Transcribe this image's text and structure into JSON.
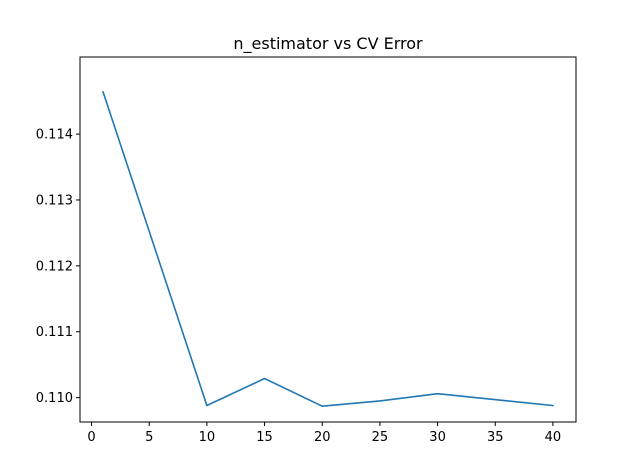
{
  "chart_data": {
    "type": "line",
    "title": "n_estimator vs CV Error",
    "xlabel": "",
    "ylabel": "",
    "xlim": [
      -1,
      42
    ],
    "ylim": [
      0.10963,
      0.11517
    ],
    "x_ticks": [
      0,
      5,
      10,
      15,
      20,
      25,
      30,
      35,
      40
    ],
    "y_ticks": [
      0.11,
      0.111,
      0.112,
      0.113,
      0.114
    ],
    "y_tick_labels": [
      "0.110",
      "0.111",
      "0.112",
      "0.113",
      "0.114"
    ],
    "grid": false,
    "series": [
      {
        "color": "#1f77b4",
        "x": [
          1,
          10,
          15,
          20,
          25,
          30,
          40
        ],
        "y": [
          0.11464,
          0.10988,
          0.11029,
          0.10987,
          0.10995,
          0.11006,
          0.10988
        ]
      }
    ]
  }
}
